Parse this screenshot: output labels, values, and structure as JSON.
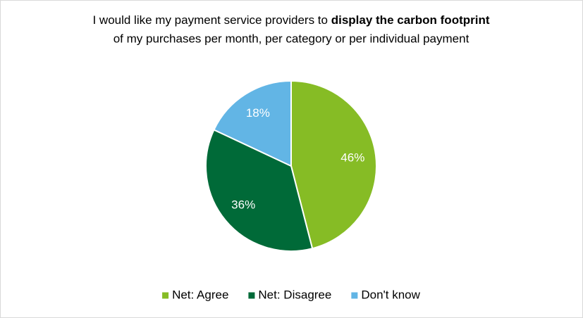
{
  "chart_data": {
    "type": "pie",
    "title": [
      "I would like my payment service providers to ",
      "display the carbon footprint",
      "of my purchases per month, per category or per individual payment"
    ],
    "categories": [
      "Net: Agree",
      "Net: Disagree",
      "Don't know"
    ],
    "values": [
      46,
      36,
      18
    ],
    "value_labels": [
      "46%",
      "36%",
      "18%"
    ],
    "colors": [
      "#86bc25",
      "#006a38",
      "#62b5e5"
    ],
    "legend": "bottom"
  }
}
